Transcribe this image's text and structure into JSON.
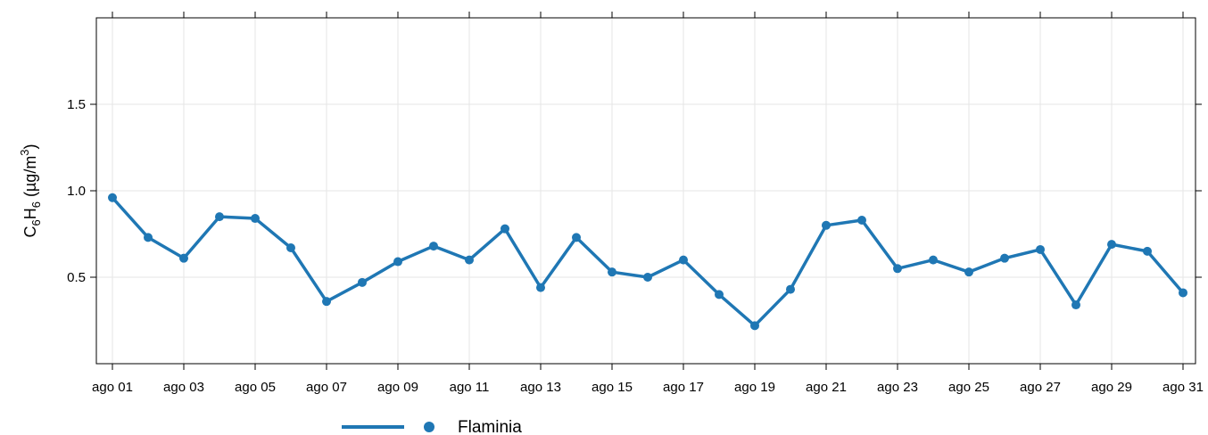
{
  "chart_data": {
    "type": "line",
    "ylabel_parts": [
      "C",
      "6",
      "H",
      "6",
      " (µg/m",
      "3",
      ")"
    ],
    "ylim": [
      0,
      2
    ],
    "y_ticks": [
      0.5,
      1.0,
      1.5
    ],
    "y_tick_labels": [
      "0.5",
      "1.0",
      "1.5"
    ],
    "x_ticks": [
      1,
      3,
      5,
      7,
      9,
      11,
      13,
      15,
      17,
      19,
      21,
      23,
      25,
      27,
      29,
      31
    ],
    "x_tick_labels": [
      "ago 01",
      "ago 03",
      "ago 05",
      "ago 07",
      "ago 09",
      "ago 11",
      "ago 13",
      "ago 15",
      "ago 17",
      "ago 19",
      "ago 21",
      "ago 23",
      "ago 25",
      "ago 27",
      "ago 29",
      "ago 31"
    ],
    "grid": true,
    "legend_position": "bottom",
    "series": [
      {
        "name": "Flaminia",
        "color": "#1f77b4",
        "x": [
          1,
          2,
          3,
          4,
          5,
          6,
          7,
          8,
          9,
          10,
          11,
          12,
          13,
          14,
          15,
          16,
          17,
          18,
          19,
          20,
          21,
          22,
          23,
          24,
          25,
          26,
          27,
          28,
          29,
          30,
          31
        ],
        "values": [
          0.96,
          0.73,
          0.61,
          0.85,
          0.84,
          0.67,
          0.36,
          0.47,
          0.59,
          0.68,
          0.6,
          0.78,
          0.44,
          0.73,
          0.53,
          0.5,
          0.6,
          0.4,
          0.22,
          0.43,
          0.8,
          0.83,
          0.55,
          0.6,
          0.53,
          0.61,
          0.66,
          0.34,
          0.69,
          0.65,
          0.41
        ]
      }
    ]
  }
}
